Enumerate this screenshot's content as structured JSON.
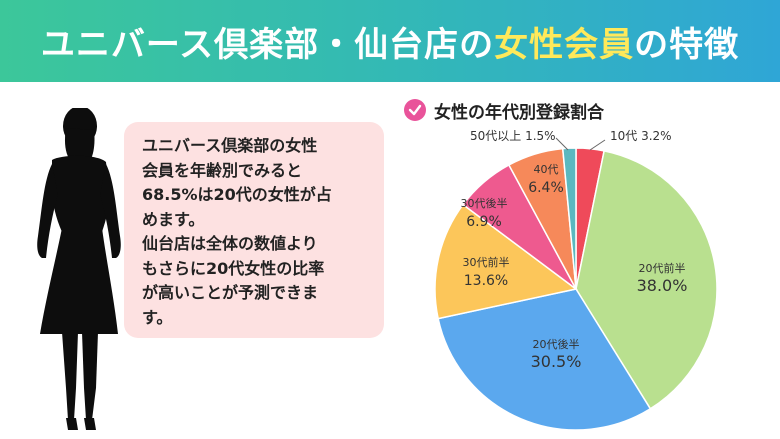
{
  "header": {
    "title_pre": "ユニバース倶楽部・仙台店の",
    "title_highlight": "女性会員",
    "title_post": "の特徴"
  },
  "bubble": {
    "text": "ユニバース倶楽部の女性\n会員を年齢別でみると\n68.5%は20代の女性が占\nめます。\n仙台店は全体の数値より\nもさらに20代女性の比率\nが高いことが予測できま\nす。"
  },
  "colors": {
    "header_start": "#3cc79a",
    "header_end": "#2fa6d6",
    "highlight": "#ffe95a",
    "bubble_bg": "#fde1e1",
    "check_icon": "#e9539a"
  },
  "icons": {
    "check": "check-circle-icon",
    "silhouette": "woman-silhouette"
  },
  "chart_data": {
    "type": "pie",
    "title": "女性の年代別登録割合",
    "slices": [
      {
        "label": "10代",
        "value": 3.2,
        "color": "#ef4a5a"
      },
      {
        "label": "20代前半",
        "value": 38.0,
        "color": "#b9e08f"
      },
      {
        "label": "20代後半",
        "value": 30.5,
        "color": "#5ba8ee"
      },
      {
        "label": "30代前半",
        "value": 13.6,
        "color": "#fcc65a"
      },
      {
        "label": "30代後半",
        "value": 6.9,
        "color": "#ee5a8f"
      },
      {
        "label": "40代",
        "value": 6.4,
        "color": "#f6895a"
      },
      {
        "label": "50代以上",
        "value": 1.5,
        "color": "#5bb8c0"
      }
    ],
    "percent_suffix": "%",
    "start": "top, clockwise"
  }
}
